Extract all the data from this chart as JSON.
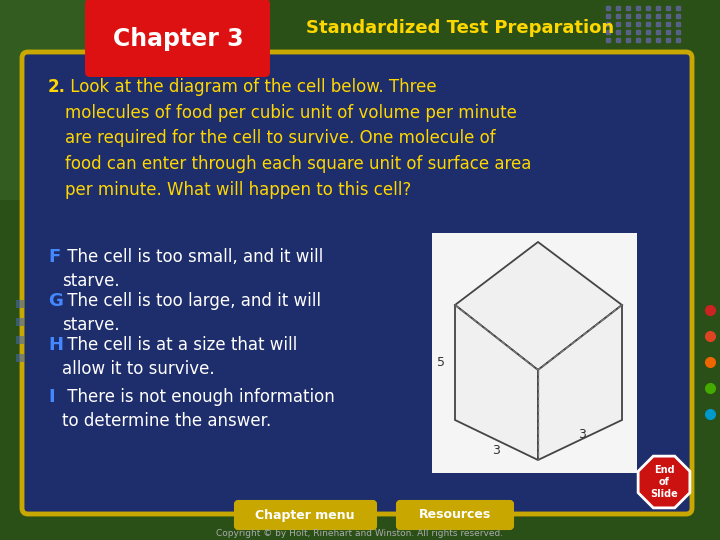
{
  "title_box_text": "Chapter 3",
  "header_text": "Standardized Test Preparation",
  "bg_color": "#1e2d6b",
  "outer_bg_color": "#2a5018",
  "title_box_color": "#dd1111",
  "title_text_color": "#ffffff",
  "header_text_color": "#ffd700",
  "border_color": "#c8a800",
  "question_text_bold": "2.",
  "question_text_rest": " Look at the diagram of the cell below. Three\nmolecules of food per cubic unit of volume per minute\nare required for the cell to survive. One molecule of\nfood can enter through each square unit of surface area\nper minute. What will happen to this cell?",
  "answers": [
    {
      "letter": "F",
      "text": " The cell is too small, and it will\nstarve."
    },
    {
      "letter": "G",
      "text": " The cell is too large, and it will\nstarve."
    },
    {
      "letter": "H",
      "text": " The cell is at a size that will\nallow it to survive."
    },
    {
      "letter": "I",
      "text": " There is not enough information\nto determine the answer."
    }
  ],
  "answer_letter_color": "#4488ff",
  "answer_text_color": "#ffffff",
  "question_text_color": "#ffd700",
  "footer_btn1": "Chapter menu",
  "footer_btn2": "Resources",
  "footer_btn_color": "#c8a800",
  "footer_btn_text_color": "#ffffff",
  "copyright_text": "Copyright © by Holt, Rinehart and Winston. All rights reserved.",
  "end_slide_color": "#cc1111",
  "cube_label_side": "5",
  "cube_label_bl": "3",
  "cube_label_br": "3",
  "dot_colors": [
    "#cc2222",
    "#dd4422",
    "#ee6600",
    "#44aa00",
    "#0099cc"
  ]
}
